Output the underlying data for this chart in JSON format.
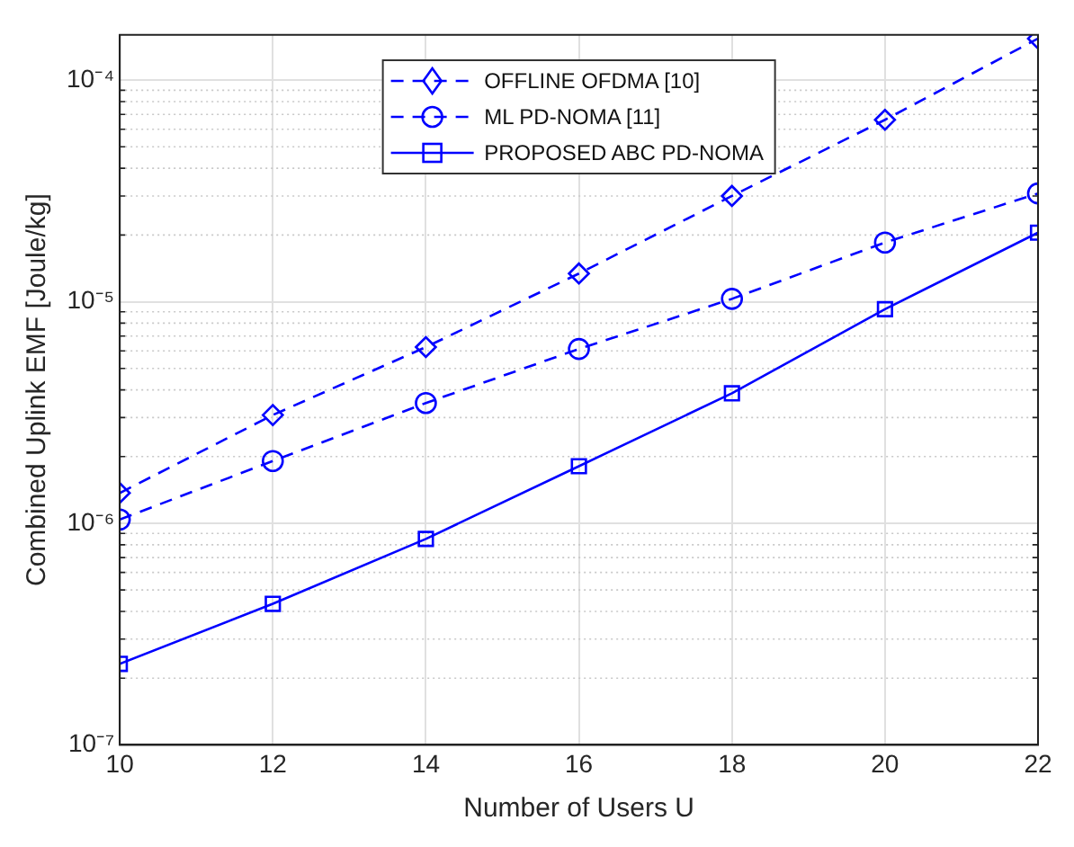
{
  "chart_data": {
    "type": "line",
    "xlabel": "Number of Users U",
    "ylabel": "Combined Uplink EMF [Joule/kg]",
    "x": [
      10,
      12,
      14,
      16,
      18,
      20,
      22
    ],
    "series": [
      {
        "name": "OFFLINE OFDMA [10]",
        "color": "#0000ff",
        "marker": "diamond",
        "line_style": "dashed",
        "values": [
          1.37e-06,
          3.08e-06,
          6.24e-06,
          1.34e-05,
          3e-05,
          6.62e-05,
          0.000154
        ]
      },
      {
        "name": "ML PD-NOMA [11]",
        "color": "#0000ff",
        "marker": "circle",
        "line_style": "dashed",
        "values": [
          1.04e-06,
          1.91e-06,
          3.49e-06,
          6.12e-06,
          1.03e-05,
          1.85e-05,
          3.08e-05
        ]
      },
      {
        "name": "PROPOSED ABC PD-NOMA",
        "color": "#0000ff",
        "marker": "square",
        "line_style": "solid",
        "values": [
          2.32e-07,
          4.33e-07,
          8.5e-07,
          1.81e-06,
          3.86e-06,
          9.25e-06,
          2.05e-05
        ]
      }
    ],
    "xlim": [
      10,
      22
    ],
    "xticks": [
      10,
      12,
      14,
      16,
      18,
      20,
      22
    ],
    "ylim": [
      1e-07,
      0.00016
    ],
    "yticks": [
      {
        "value": 1e-07,
        "label": "10⁻⁷"
      },
      {
        "value": 1e-06,
        "label": "10⁻⁶"
      },
      {
        "value": 1e-05,
        "label": "10⁻⁵"
      },
      {
        "value": 0.0001,
        "label": "10⁻⁴"
      }
    ],
    "log": "y",
    "grid": true,
    "legend": "top"
  }
}
